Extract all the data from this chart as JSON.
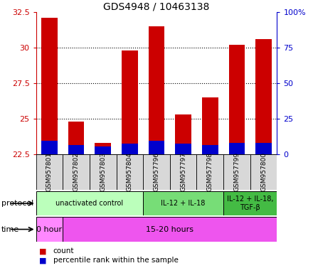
{
  "title": "GDS4948 / 10463138",
  "samples": [
    "GSM957801",
    "GSM957802",
    "GSM957803",
    "GSM957804",
    "GSM957796",
    "GSM957797",
    "GSM957798",
    "GSM957799",
    "GSM957800"
  ],
  "count_values": [
    32.1,
    24.8,
    23.3,
    29.8,
    31.5,
    25.3,
    26.5,
    30.2,
    30.6
  ],
  "percentile_values": [
    23.45,
    23.15,
    23.05,
    23.25,
    23.45,
    23.25,
    23.15,
    23.3,
    23.3
  ],
  "bar_bottom": 22.5,
  "ylim_left": [
    22.5,
    32.5
  ],
  "ylim_right": [
    0,
    100
  ],
  "yticks_left": [
    22.5,
    25.0,
    27.5,
    30.0,
    32.5
  ],
  "yticks_right": [
    0,
    25,
    50,
    75,
    100
  ],
  "ytick_labels_left": [
    "22.5",
    "25",
    "27.5",
    "30",
    "32.5"
  ],
  "ytick_labels_right": [
    "0",
    "25",
    "50",
    "75",
    "100%"
  ],
  "count_color": "#cc0000",
  "percentile_color": "#0000cc",
  "bar_width": 0.6,
  "protocol_groups": [
    {
      "label": "unactivated control",
      "samples": [
        0,
        1,
        2,
        3
      ],
      "color": "#bbffbb"
    },
    {
      "label": "IL-12 + IL-18",
      "samples": [
        4,
        5,
        6
      ],
      "color": "#77dd77"
    },
    {
      "label": "IL-12 + IL-18,\nTGF-β",
      "samples": [
        7,
        8
      ],
      "color": "#44bb44"
    }
  ],
  "time_groups": [
    {
      "label": "0 hour",
      "samples": [
        0
      ],
      "color": "#ff88ff"
    },
    {
      "label": "15-20 hours",
      "samples": [
        1,
        2,
        3,
        4,
        5,
        6,
        7,
        8
      ],
      "color": "#ee55ee"
    }
  ],
  "left_axis_color": "#cc0000",
  "right_axis_color": "#0000cc",
  "grid_yticks": [
    25.0,
    27.5,
    30.0
  ]
}
